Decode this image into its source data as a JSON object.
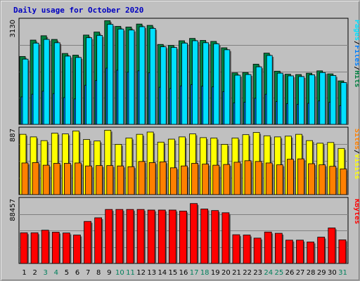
{
  "title": "Daily usage for October 2020",
  "colors": {
    "title": "#0000c0",
    "panel_bg": "#c0c0c0",
    "hits": "#008040",
    "files": "#0080ff",
    "pages": "#00e0ff",
    "visits": "#ffff00",
    "sites": "#ff8000",
    "kbytes": "#ff0000",
    "weekday_label": "#000000",
    "weekend_label": "#00805c"
  },
  "chart_data": [
    {
      "type": "bar",
      "panel": "hits-files-pages",
      "max_label": "3130",
      "ylim": [
        0,
        3130
      ],
      "legend": [
        "Pages",
        "/",
        "Files",
        "/",
        "Hits"
      ],
      "categories": [
        "1",
        "2",
        "3",
        "4",
        "5",
        "6",
        "7",
        "8",
        "9",
        "10",
        "11",
        "12",
        "13",
        "14",
        "15",
        "16",
        "17",
        "18",
        "19",
        "20",
        "21",
        "22",
        "23",
        "24",
        "25",
        "26",
        "27",
        "28",
        "29",
        "30",
        "31"
      ],
      "weekend_days": [
        "3",
        "4",
        "10",
        "11",
        "17",
        "18",
        "24",
        "25",
        "31"
      ],
      "series": [
        {
          "name": "Hits",
          "values": [
            2030,
            2520,
            2650,
            2540,
            2120,
            2070,
            2670,
            2760,
            3100,
            2930,
            2910,
            3000,
            2960,
            2390,
            2360,
            2500,
            2570,
            2510,
            2480,
            2290,
            1540,
            1550,
            1800,
            2130,
            1590,
            1500,
            1490,
            1530,
            1600,
            1510,
            1300
          ]
        },
        {
          "name": "Files",
          "values": [
            820,
            900,
            990,
            920,
            800,
            760,
            1170,
            1310,
            1680,
            1620,
            1560,
            1600,
            1540,
            1110,
            1070,
            1150,
            1190,
            1140,
            1120,
            980,
            640,
            660,
            780,
            900,
            680,
            620,
            600,
            630,
            700,
            660,
            560
          ]
        },
        {
          "name": "Pages",
          "values": [
            1950,
            2430,
            2540,
            2440,
            2040,
            2000,
            2590,
            2660,
            2990,
            2850,
            2820,
            2920,
            2870,
            2320,
            2300,
            2430,
            2500,
            2440,
            2410,
            2230,
            1470,
            1490,
            1720,
            2060,
            1530,
            1450,
            1430,
            1480,
            1550,
            1460,
            1250
          ]
        }
      ]
    },
    {
      "type": "bar",
      "panel": "visits-sites",
      "max_label": "887",
      "ylim": [
        0,
        887
      ],
      "legend": [
        "Sites",
        "/",
        "Visits"
      ],
      "categories": [
        "1",
        "2",
        "3",
        "4",
        "5",
        "6",
        "7",
        "8",
        "9",
        "10",
        "11",
        "12",
        "13",
        "14",
        "15",
        "16",
        "17",
        "18",
        "19",
        "20",
        "21",
        "22",
        "23",
        "24",
        "25",
        "26",
        "27",
        "28",
        "29",
        "30",
        "31"
      ],
      "series": [
        {
          "name": "Visits",
          "values": [
            810,
            775,
            725,
            825,
            815,
            855,
            740,
            720,
            865,
            675,
            760,
            810,
            840,
            705,
            745,
            775,
            815,
            765,
            760,
            675,
            760,
            805,
            835,
            790,
            775,
            785,
            810,
            725,
            690,
            700,
            620
          ]
        },
        {
          "name": "Sites",
          "values": [
            425,
            430,
            395,
            420,
            420,
            425,
            385,
            390,
            390,
            385,
            375,
            445,
            430,
            440,
            360,
            385,
            420,
            410,
            395,
            405,
            435,
            455,
            445,
            425,
            400,
            475,
            480,
            415,
            400,
            380,
            345
          ]
        }
      ]
    },
    {
      "type": "bar",
      "panel": "kbytes",
      "max_label": "88457",
      "ylim": [
        0,
        88457
      ],
      "legend": [
        "KBytes"
      ],
      "categories": [
        "1",
        "2",
        "3",
        "4",
        "5",
        "6",
        "7",
        "8",
        "9",
        "10",
        "11",
        "12",
        "13",
        "14",
        "15",
        "16",
        "17",
        "18",
        "19",
        "20",
        "21",
        "22",
        "23",
        "24",
        "25",
        "26",
        "27",
        "28",
        "29",
        "30",
        "31"
      ],
      "series": [
        {
          "name": "KBytes",
          "values": [
            42000,
            42000,
            45500,
            42800,
            41700,
            38900,
            57500,
            62500,
            73900,
            73900,
            73900,
            73900,
            73100,
            73100,
            73100,
            71700,
            82000,
            74500,
            72400,
            69400,
            39300,
            38900,
            34700,
            43000,
            41300,
            31900,
            31900,
            29400,
            36000,
            48600,
            32300
          ]
        }
      ]
    }
  ]
}
